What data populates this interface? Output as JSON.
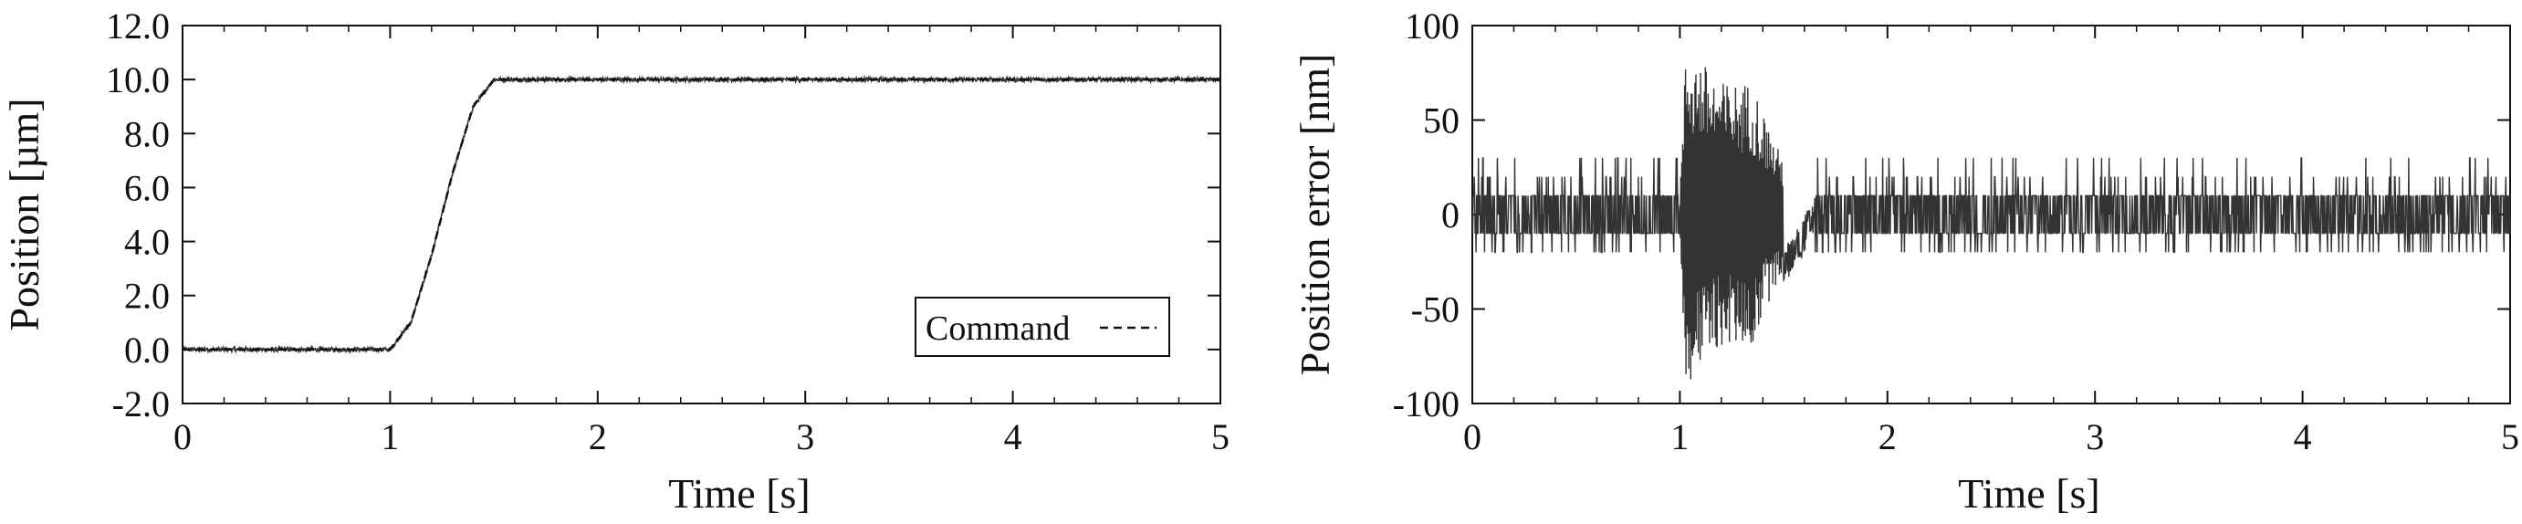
{
  "chart_data": [
    {
      "type": "line",
      "xlabel": "Time [s]",
      "ylabel": "Position [µm]",
      "xlim": [
        0,
        5
      ],
      "ylim": [
        -2.0,
        12.0
      ],
      "x_ticks": [
        "0",
        "1",
        "2",
        "3",
        "4",
        "5"
      ],
      "y_ticks": [
        "-2.0",
        "0.0",
        "2.0",
        "4.0",
        "6.0",
        "8.0",
        "10.0",
        "12.0"
      ],
      "legend": {
        "label": "Command",
        "placement": "bottom-right"
      },
      "grid": false,
      "series": [
        {
          "name": "Command",
          "style": "dashed",
          "x": [
            0,
            1.0,
            1.1,
            1.2,
            1.3,
            1.4,
            1.5,
            5.0
          ],
          "y": [
            0.0,
            0.0,
            1.0,
            3.5,
            6.5,
            9.0,
            10.0,
            10.0
          ]
        },
        {
          "style": "solid",
          "x": [
            0,
            1.0,
            1.1,
            1.2,
            1.3,
            1.4,
            1.5,
            5.0
          ],
          "y": [
            0.0,
            0.0,
            1.0,
            3.5,
            6.5,
            9.0,
            10.0,
            10.0
          ],
          "noise": 0.08
        }
      ]
    },
    {
      "type": "line",
      "xlabel": "Time [s]",
      "ylabel": "Position error [nm]",
      "xlim": [
        0,
        5
      ],
      "ylim": [
        -100,
        100
      ],
      "x_ticks": [
        "0",
        "1",
        "2",
        "3",
        "4",
        "5"
      ],
      "y_ticks": [
        "-100",
        "-50",
        "0",
        "50",
        "100"
      ],
      "grid": false,
      "series": [
        {
          "style": "solid",
          "quantization": 10,
          "envelope": [
            {
              "x": 0.0,
              "amp": 10
            },
            {
              "x": 1.0,
              "amp": 10
            },
            {
              "x": 1.03,
              "amp": 90
            },
            {
              "x": 1.2,
              "amp": 70
            },
            {
              "x": 1.35,
              "amp": 70
            },
            {
              "x": 1.45,
              "amp": 40
            },
            {
              "x": 1.52,
              "amp": 25
            },
            {
              "x": 1.6,
              "amp": 10
            },
            {
              "x": 5.0,
              "amp": 10
            }
          ],
          "settle_offset": [
            {
              "x": 1.48,
              "y": -30
            },
            {
              "x": 1.55,
              "y": -20
            },
            {
              "x": 1.6,
              "y": -10
            },
            {
              "x": 1.65,
              "y": 0
            }
          ]
        }
      ]
    }
  ]
}
